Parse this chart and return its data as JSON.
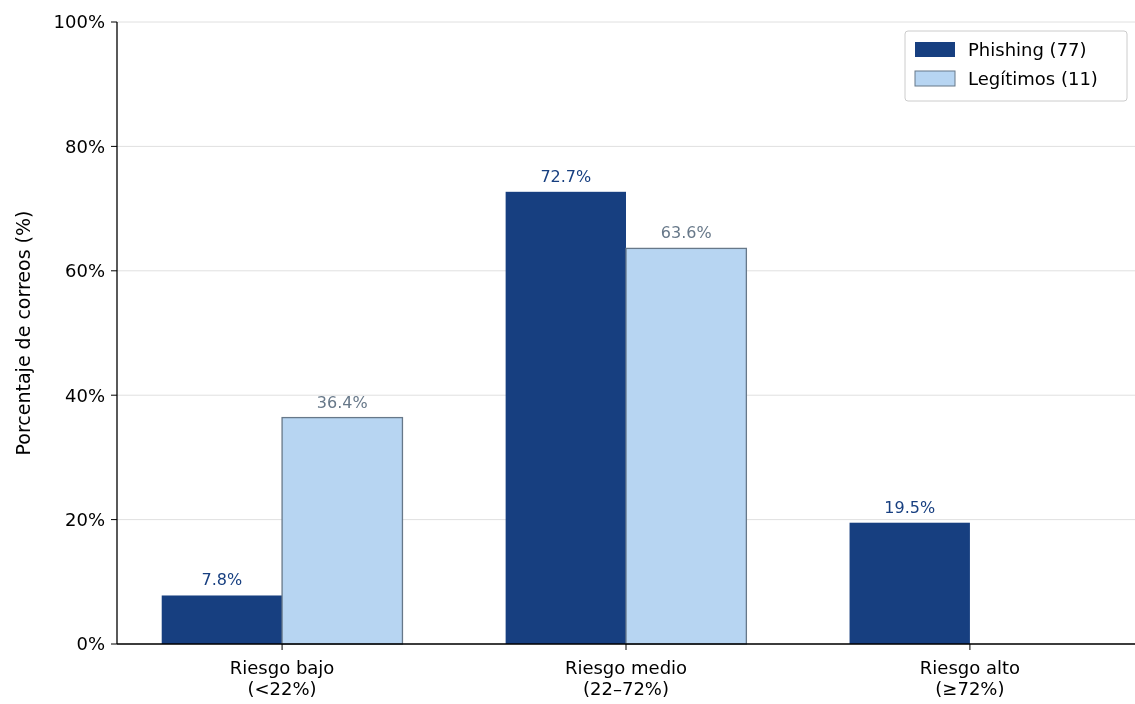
{
  "chart_data": {
    "type": "bar",
    "ylabel": "Porcentaje de correos (%)",
    "categories": [
      "Riesgo bajo\n(<22%)",
      "Riesgo medio\n(22–72%)",
      "Riesgo alto\n(≥72%)"
    ],
    "series": [
      {
        "name": "Phishing (77)",
        "color": "#173f80",
        "values": [
          7.8,
          72.7,
          19.5
        ],
        "value_labels": [
          "7.8%",
          "72.7%",
          "19.5%"
        ]
      },
      {
        "name": "Legítimos (11)",
        "color": "#b7d5f2",
        "values": [
          36.4,
          63.6,
          0
        ],
        "value_labels": [
          "36.4%",
          "63.6%",
          null
        ]
      }
    ],
    "ylim": [
      0,
      100
    ],
    "yticks": [
      {
        "value": 0,
        "label": "0%"
      },
      {
        "value": 20,
        "label": "20%"
      },
      {
        "value": 40,
        "label": "40%"
      },
      {
        "value": 60,
        "label": "60%"
      },
      {
        "value": 80,
        "label": "80%"
      },
      {
        "value": 100,
        "label": "100%"
      }
    ],
    "grid": "y",
    "legend": "top right"
  }
}
